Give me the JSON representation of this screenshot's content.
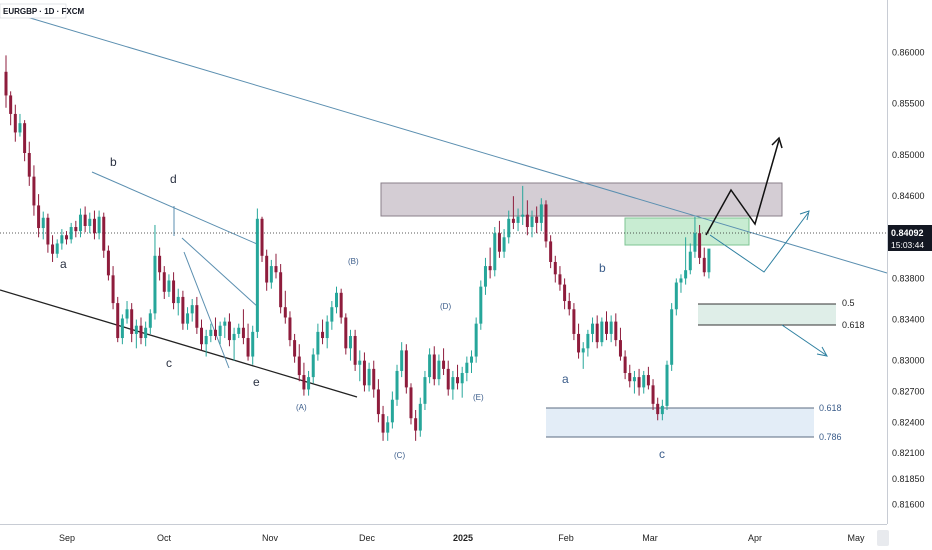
{
  "symbol": "EURGBP · 1D · FXCM",
  "chart_data": {
    "type": "candlestick",
    "title": "EURGBP · 1D · FXCM",
    "x_labels": [
      "Sep",
      "Oct",
      "Nov",
      "Dec",
      "2025",
      "Feb",
      "Mar",
      "Apr",
      "May"
    ],
    "y_ticks": [
      "0.86000",
      "0.85500",
      "0.85000",
      "0.84600",
      "0.84200",
      "0.83800",
      "0.83400",
      "0.83000",
      "0.82700",
      "0.82400",
      "0.82100",
      "0.81850",
      "0.81600"
    ],
    "ylim": [
      0.8145,
      0.8645
    ],
    "current_price": "0.84092",
    "countdown": "15:03:44",
    "candles_ohlc": [
      [
        0.8581,
        0.8597,
        0.8546,
        0.8558
      ],
      [
        0.8558,
        0.8562,
        0.8529,
        0.854
      ],
      [
        0.854,
        0.8549,
        0.8513,
        0.8522
      ],
      [
        0.8522,
        0.854,
        0.8518,
        0.8531
      ],
      [
        0.8531,
        0.8534,
        0.8494,
        0.8502
      ],
      [
        0.8502,
        0.8513,
        0.847,
        0.8479
      ],
      [
        0.8479,
        0.849,
        0.8441,
        0.8451
      ],
      [
        0.8451,
        0.8462,
        0.842,
        0.8429
      ],
      [
        0.8429,
        0.8445,
        0.8418,
        0.8439
      ],
      [
        0.8439,
        0.8443,
        0.8405,
        0.8413
      ],
      [
        0.8413,
        0.8422,
        0.8396,
        0.8404
      ],
      [
        0.8404,
        0.8418,
        0.84,
        0.8414
      ],
      [
        0.8414,
        0.8428,
        0.8408,
        0.8422
      ],
      [
        0.8422,
        0.8426,
        0.8413,
        0.8418
      ],
      [
        0.8418,
        0.8434,
        0.8414,
        0.843
      ],
      [
        0.843,
        0.8436,
        0.842,
        0.8426
      ],
      [
        0.8426,
        0.8448,
        0.842,
        0.8442
      ],
      [
        0.8442,
        0.845,
        0.8425,
        0.8431
      ],
      [
        0.8431,
        0.8444,
        0.8424,
        0.8438
      ],
      [
        0.8438,
        0.8446,
        0.8418,
        0.8424
      ],
      [
        0.8424,
        0.8446,
        0.8418,
        0.844
      ],
      [
        0.844,
        0.8444,
        0.84,
        0.8407
      ],
      [
        0.8407,
        0.8412,
        0.8378,
        0.8383
      ],
      [
        0.8383,
        0.8392,
        0.835,
        0.8356
      ],
      [
        0.8356,
        0.8362,
        0.8318,
        0.8322
      ],
      [
        0.8322,
        0.8345,
        0.8316,
        0.8341
      ],
      [
        0.8341,
        0.8358,
        0.8336,
        0.835
      ],
      [
        0.835,
        0.8356,
        0.8318,
        0.8326
      ],
      [
        0.8326,
        0.834,
        0.8312,
        0.8334
      ],
      [
        0.8334,
        0.8342,
        0.8316,
        0.8322
      ],
      [
        0.8322,
        0.8338,
        0.8314,
        0.8332
      ],
      [
        0.8332,
        0.835,
        0.8326,
        0.8346
      ],
      [
        0.8346,
        0.8432,
        0.834,
        0.8402
      ],
      [
        0.8402,
        0.841,
        0.8378,
        0.8386
      ],
      [
        0.8386,
        0.8392,
        0.836,
        0.8367
      ],
      [
        0.8367,
        0.8384,
        0.8362,
        0.8378
      ],
      [
        0.8378,
        0.8386,
        0.835,
        0.8356
      ],
      [
        0.8356,
        0.837,
        0.8344,
        0.8362
      ],
      [
        0.8362,
        0.8368,
        0.833,
        0.8336
      ],
      [
        0.8336,
        0.8352,
        0.833,
        0.8346
      ],
      [
        0.8346,
        0.836,
        0.8338,
        0.8354
      ],
      [
        0.8354,
        0.8362,
        0.8326,
        0.8332
      ],
      [
        0.8332,
        0.834,
        0.831,
        0.8316
      ],
      [
        0.8316,
        0.833,
        0.8304,
        0.8324
      ],
      [
        0.8324,
        0.8336,
        0.8318,
        0.833
      ],
      [
        0.833,
        0.8342,
        0.832,
        0.8324
      ],
      [
        0.8324,
        0.8338,
        0.8316,
        0.8334
      ],
      [
        0.8334,
        0.8342,
        0.8322,
        0.8338
      ],
      [
        0.8338,
        0.8346,
        0.8314,
        0.832
      ],
      [
        0.832,
        0.8332,
        0.83,
        0.8326
      ],
      [
        0.8326,
        0.8336,
        0.8322,
        0.8332
      ],
      [
        0.8332,
        0.835,
        0.8316,
        0.8322
      ],
      [
        0.8322,
        0.8336,
        0.83,
        0.8304
      ],
      [
        0.8304,
        0.8334,
        0.8296,
        0.8328
      ],
      [
        0.8328,
        0.8448,
        0.8322,
        0.8438
      ],
      [
        0.8438,
        0.844,
        0.8396,
        0.8402
      ],
      [
        0.8402,
        0.8408,
        0.8368,
        0.8376
      ],
      [
        0.8376,
        0.8398,
        0.837,
        0.8392
      ],
      [
        0.8392,
        0.8404,
        0.838,
        0.8386
      ],
      [
        0.8386,
        0.8394,
        0.8346,
        0.8352
      ],
      [
        0.8352,
        0.8368,
        0.8336,
        0.8342
      ],
      [
        0.8342,
        0.8348,
        0.8314,
        0.832
      ],
      [
        0.832,
        0.8326,
        0.8298,
        0.8304
      ],
      [
        0.8304,
        0.8316,
        0.828,
        0.8286
      ],
      [
        0.8286,
        0.8298,
        0.8266,
        0.8272
      ],
      [
        0.8272,
        0.829,
        0.8266,
        0.8284
      ],
      [
        0.8284,
        0.8312,
        0.8278,
        0.8306
      ],
      [
        0.8306,
        0.8336,
        0.83,
        0.8328
      ],
      [
        0.8328,
        0.834,
        0.8316,
        0.8322
      ],
      [
        0.8322,
        0.8344,
        0.8312,
        0.8338
      ],
      [
        0.8338,
        0.8358,
        0.833,
        0.8352
      ],
      [
        0.8352,
        0.8372,
        0.8346,
        0.8366
      ],
      [
        0.8366,
        0.837,
        0.8336,
        0.8342
      ],
      [
        0.8342,
        0.8346,
        0.8306,
        0.8312
      ],
      [
        0.8312,
        0.833,
        0.83,
        0.8324
      ],
      [
        0.8324,
        0.833,
        0.829,
        0.8296
      ],
      [
        0.8296,
        0.831,
        0.828,
        0.83
      ],
      [
        0.83,
        0.8308,
        0.827,
        0.8276
      ],
      [
        0.8276,
        0.8298,
        0.827,
        0.8292
      ],
      [
        0.8292,
        0.83,
        0.8264,
        0.8272
      ],
      [
        0.8272,
        0.8282,
        0.824,
        0.8248
      ],
      [
        0.8248,
        0.8256,
        0.8222,
        0.823
      ],
      [
        0.823,
        0.8246,
        0.8222,
        0.824
      ],
      [
        0.824,
        0.827,
        0.8234,
        0.8262
      ],
      [
        0.8262,
        0.8296,
        0.8256,
        0.829
      ],
      [
        0.829,
        0.8318,
        0.8284,
        0.831
      ],
      [
        0.831,
        0.8316,
        0.8268,
        0.8274
      ],
      [
        0.8274,
        0.8278,
        0.8238,
        0.8244
      ],
      [
        0.8244,
        0.8252,
        0.8222,
        0.8232
      ],
      [
        0.8232,
        0.8264,
        0.8226,
        0.8258
      ],
      [
        0.8258,
        0.829,
        0.8252,
        0.8284
      ],
      [
        0.8284,
        0.8312,
        0.8278,
        0.8306
      ],
      [
        0.8306,
        0.8314,
        0.8276,
        0.8282
      ],
      [
        0.8282,
        0.8306,
        0.8276,
        0.83
      ],
      [
        0.83,
        0.8312,
        0.8286,
        0.8292
      ],
      [
        0.8292,
        0.83,
        0.8266,
        0.8272
      ],
      [
        0.8272,
        0.829,
        0.8262,
        0.8284
      ],
      [
        0.8284,
        0.8296,
        0.8272,
        0.8278
      ],
      [
        0.8278,
        0.8294,
        0.8264,
        0.8288
      ],
      [
        0.8288,
        0.8304,
        0.828,
        0.8298
      ],
      [
        0.8298,
        0.831,
        0.8288,
        0.8304
      ],
      [
        0.8304,
        0.8342,
        0.8298,
        0.8336
      ],
      [
        0.8336,
        0.8378,
        0.833,
        0.8372
      ],
      [
        0.8372,
        0.84,
        0.8364,
        0.8392
      ],
      [
        0.8392,
        0.841,
        0.838,
        0.8388
      ],
      [
        0.8388,
        0.843,
        0.8382,
        0.8424
      ],
      [
        0.8424,
        0.8436,
        0.84,
        0.8406
      ],
      [
        0.8406,
        0.8428,
        0.84,
        0.842
      ],
      [
        0.842,
        0.8446,
        0.8414,
        0.8438
      ],
      [
        0.8438,
        0.846,
        0.8428,
        0.8434
      ],
      [
        0.8434,
        0.8448,
        0.8426,
        0.844
      ],
      [
        0.844,
        0.847,
        0.8432,
        0.8442
      ],
      [
        0.8442,
        0.8456,
        0.8422,
        0.843
      ],
      [
        0.843,
        0.8446,
        0.842,
        0.844
      ],
      [
        0.844,
        0.845,
        0.8424,
        0.8434
      ],
      [
        0.8434,
        0.8458,
        0.8426,
        0.8452
      ],
      [
        0.8452,
        0.8456,
        0.841,
        0.8416
      ],
      [
        0.8416,
        0.8422,
        0.839,
        0.8396
      ],
      [
        0.8396,
        0.8402,
        0.8376,
        0.8384
      ],
      [
        0.8384,
        0.8392,
        0.8368,
        0.8374
      ],
      [
        0.8374,
        0.838,
        0.835,
        0.8358
      ],
      [
        0.8358,
        0.8366,
        0.8344,
        0.835
      ],
      [
        0.835,
        0.8356,
        0.832,
        0.8326
      ],
      [
        0.8326,
        0.8336,
        0.8302,
        0.8308
      ],
      [
        0.8308,
        0.8318,
        0.8292,
        0.8312
      ],
      [
        0.8312,
        0.833,
        0.8304,
        0.8326
      ],
      [
        0.8326,
        0.8342,
        0.8318,
        0.8336
      ],
      [
        0.8336,
        0.8344,
        0.8312,
        0.8318
      ],
      [
        0.8318,
        0.8342,
        0.8314,
        0.8338
      ],
      [
        0.8338,
        0.8348,
        0.832,
        0.8326
      ],
      [
        0.8326,
        0.8344,
        0.8318,
        0.8338
      ],
      [
        0.8338,
        0.8346,
        0.8314,
        0.832
      ],
      [
        0.832,
        0.8332,
        0.83,
        0.8304
      ],
      [
        0.8304,
        0.831,
        0.8282,
        0.8288
      ],
      [
        0.8288,
        0.8296,
        0.8274,
        0.828
      ],
      [
        0.828,
        0.829,
        0.8268,
        0.8284
      ],
      [
        0.8284,
        0.8292,
        0.8266,
        0.8274
      ],
      [
        0.8274,
        0.829,
        0.8268,
        0.8286
      ],
      [
        0.8286,
        0.8294,
        0.8272,
        0.8276
      ],
      [
        0.8276,
        0.8282,
        0.8252,
        0.8258
      ],
      [
        0.8258,
        0.8264,
        0.8242,
        0.8248
      ],
      [
        0.8248,
        0.8262,
        0.8242,
        0.8256
      ],
      [
        0.8256,
        0.83,
        0.8252,
        0.8296
      ],
      [
        0.8296,
        0.8356,
        0.829,
        0.835
      ],
      [
        0.835,
        0.838,
        0.8344,
        0.8376
      ],
      [
        0.8376,
        0.8384,
        0.8366,
        0.838
      ],
      [
        0.838,
        0.842,
        0.8374,
        0.8388
      ],
      [
        0.8388,
        0.8414,
        0.8384,
        0.8406
      ],
      [
        0.8406,
        0.844,
        0.84,
        0.8424
      ],
      [
        0.8424,
        0.8432,
        0.8394,
        0.84
      ],
      [
        0.84,
        0.841,
        0.8382,
        0.8386
      ],
      [
        0.8386,
        0.8402,
        0.838,
        0.8409
      ]
    ]
  },
  "annotations": {
    "wave_labels": [
      "a",
      "b",
      "c",
      "d",
      "e",
      "(A)",
      "(B)",
      "(C)",
      "(D)",
      "(E)",
      "a",
      "b",
      "c"
    ],
    "fib_levels": [
      "0.5",
      "0.618",
      "0.618",
      "0.786"
    ]
  },
  "colors": {
    "up_candle": "#26a69a",
    "down_candle": "#8e1c3c",
    "trendline": "#5b8fb0",
    "resistance_zone": "#d4cdd4",
    "target_zone": "#c8ecd2",
    "fib_zone_upper": "#dfeee8",
    "fib_zone_lower": "#e3edf7",
    "price_badge": "#131722"
  }
}
